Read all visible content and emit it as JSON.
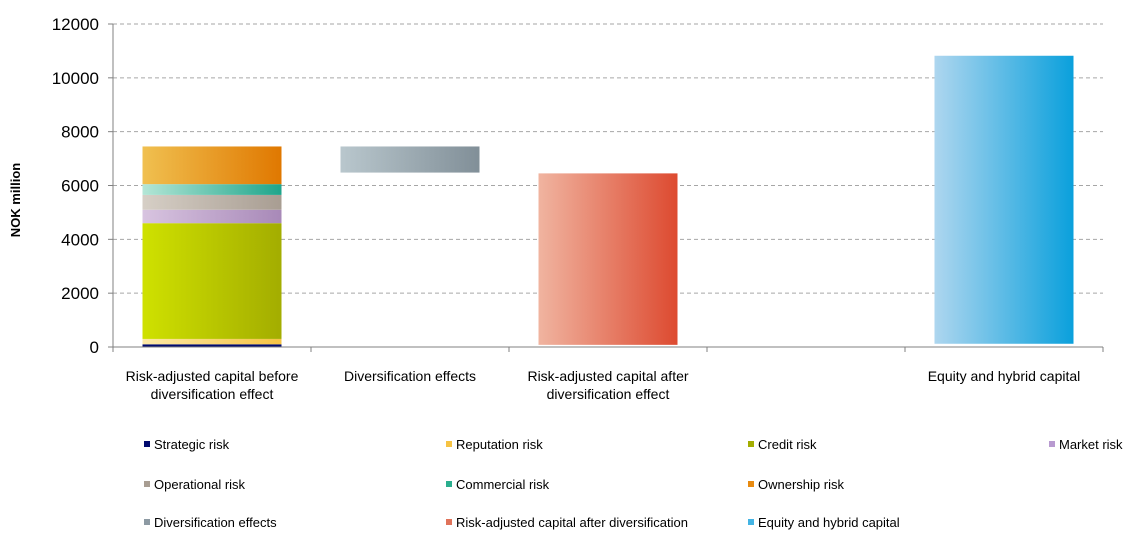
{
  "chart_data": {
    "type": "bar",
    "stacked": true,
    "title": "",
    "xlabel": "",
    "ylabel": "NOK million",
    "ylim": [
      0,
      12000
    ],
    "yticks": [
      0,
      2000,
      4000,
      6000,
      8000,
      10000,
      12000
    ],
    "grid": true,
    "legend_position": "bottom",
    "categories": [
      [
        "Risk-adjusted capital before",
        "diversification effect"
      ],
      [
        "Diversification effects"
      ],
      [
        "Risk-adjusted capital after",
        "diversification effect"
      ],
      [],
      [
        "Equity and hybrid capital"
      ]
    ],
    "series": [
      {
        "name": "Strategic risk",
        "color_from": "#000a6e",
        "color_to": "#000a6e",
        "bars": [
          {
            "cat": 0,
            "start": 0,
            "end": 100
          }
        ]
      },
      {
        "name": "Reputation risk",
        "color_from": "#fde9a6",
        "color_to": "#f6c343",
        "bars": [
          {
            "cat": 0,
            "start": 100,
            "end": 300
          }
        ]
      },
      {
        "name": "Credit risk",
        "color_from": "#cfe100",
        "color_to": "#a3ad00",
        "bars": [
          {
            "cat": 0,
            "start": 300,
            "end": 4600
          }
        ]
      },
      {
        "name": "Market risk",
        "color_from": "#d8c4e0",
        "color_to": "#a889b8",
        "bars": [
          {
            "cat": 0,
            "start": 4600,
            "end": 5100
          }
        ]
      },
      {
        "name": "Operational risk",
        "color_from": "#d6cfc6",
        "color_to": "#a89d92",
        "bars": [
          {
            "cat": 0,
            "start": 5100,
            "end": 5650
          }
        ]
      },
      {
        "name": "Commercial risk",
        "color_from": "#b4e6d6",
        "color_to": "#1ea58b",
        "bars": [
          {
            "cat": 0,
            "start": 5650,
            "end": 6050
          }
        ]
      },
      {
        "name": "Ownership risk",
        "color_from": "#f0c050",
        "color_to": "#e07800",
        "bars": [
          {
            "cat": 0,
            "start": 6050,
            "end": 7450
          }
        ]
      },
      {
        "name": "Diversification effects",
        "color_from": "#b9c7cd",
        "color_to": "#818f98",
        "bars": [
          {
            "cat": 1,
            "start": 6480,
            "end": 7450
          }
        ]
      },
      {
        "name": "Risk-adjusted capital after diversification",
        "color_from": "#f0b4a0",
        "color_to": "#dd4a30",
        "bars": [
          {
            "cat": 2,
            "start": 80,
            "end": 6450
          }
        ]
      },
      {
        "name": "Equity and hybrid capital",
        "color_from": "#aed6ef",
        "color_to": "#0aa0dc",
        "bars": [
          {
            "cat": 4,
            "start": 120,
            "end": 10820
          }
        ]
      }
    ],
    "legend_layout": [
      [
        "Strategic risk",
        "Reputation risk",
        "Credit risk",
        "Market risk"
      ],
      [
        "Operational risk",
        "Commercial risk",
        "Ownership risk"
      ],
      [
        "Diversification effects",
        "Risk-adjusted capital after diversification",
        "Equity and hybrid capital"
      ]
    ],
    "legend_marker_colors": {
      "Strategic risk": "#000a6e",
      "Reputation risk": "#f6c343",
      "Credit risk": "#a3ad00",
      "Market risk": "#b89ad0",
      "Operational risk": "#a89d92",
      "Commercial risk": "#2aae8e",
      "Ownership risk": "#e88a10",
      "Diversification effects": "#8d9aa3",
      "Risk-adjusted capital after diversification": "#e0735a",
      "Equity and hybrid capital": "#43b4e4"
    }
  }
}
